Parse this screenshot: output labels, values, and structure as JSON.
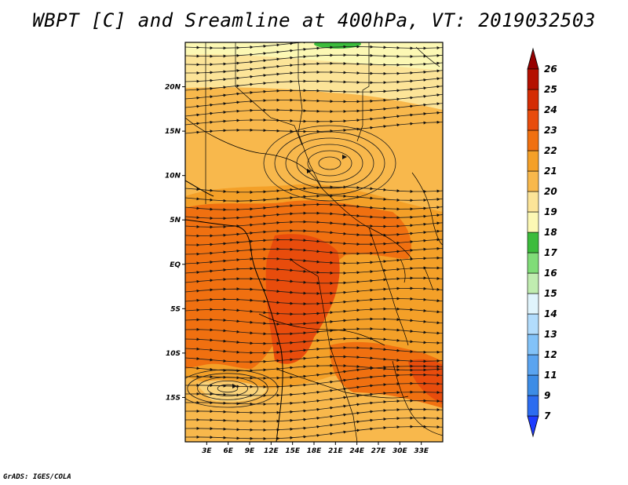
{
  "title": "WBPT [C] and Sreamline at 400hPa, VT: 2019032503",
  "footer": "GrADS: IGES/COLA",
  "map": {
    "lon_range": [
      0,
      36
    ],
    "lat_range": [
      -20,
      25
    ],
    "lat_ticks": [
      {
        "value": 20,
        "label": "20N"
      },
      {
        "value": 15,
        "label": "15N"
      },
      {
        "value": 10,
        "label": "10N"
      },
      {
        "value": 5,
        "label": "5N"
      },
      {
        "value": 0,
        "label": "EQ"
      },
      {
        "value": -5,
        "label": "5S"
      },
      {
        "value": -10,
        "label": "10S"
      },
      {
        "value": -15,
        "label": "15S"
      }
    ],
    "lon_ticks": [
      {
        "value": 3,
        "label": "3E"
      },
      {
        "value": 6,
        "label": "6E"
      },
      {
        "value": 9,
        "label": "9E"
      },
      {
        "value": 12,
        "label": "12E"
      },
      {
        "value": 15,
        "label": "15E"
      },
      {
        "value": 18,
        "label": "18E"
      },
      {
        "value": 21,
        "label": "21E"
      },
      {
        "value": 24,
        "label": "24E"
      },
      {
        "value": 27,
        "label": "27E"
      },
      {
        "value": 30,
        "label": "30E"
      },
      {
        "value": 33,
        "label": "33E"
      }
    ]
  },
  "colorbar": {
    "levels": [
      "7",
      "9",
      "11",
      "12",
      "13",
      "14",
      "15",
      "16",
      "17",
      "18",
      "19",
      "20",
      "21",
      "22",
      "23",
      "24",
      "25",
      "26"
    ],
    "colors": [
      "#1e3cff",
      "#2c6cf0",
      "#3c8ce6",
      "#5aa4f0",
      "#82c2f8",
      "#b2dcfc",
      "#e0f4fc",
      "#c0ecb0",
      "#80dc78",
      "#3cbc3c",
      "#fcf8b4",
      "#fce498",
      "#f8b84c",
      "#f4a028",
      "#f07010",
      "#e84c0c",
      "#d42c04",
      "#b41000",
      "#960000"
    ],
    "under_color": "#1e3cff",
    "over_color": "#960000"
  }
}
